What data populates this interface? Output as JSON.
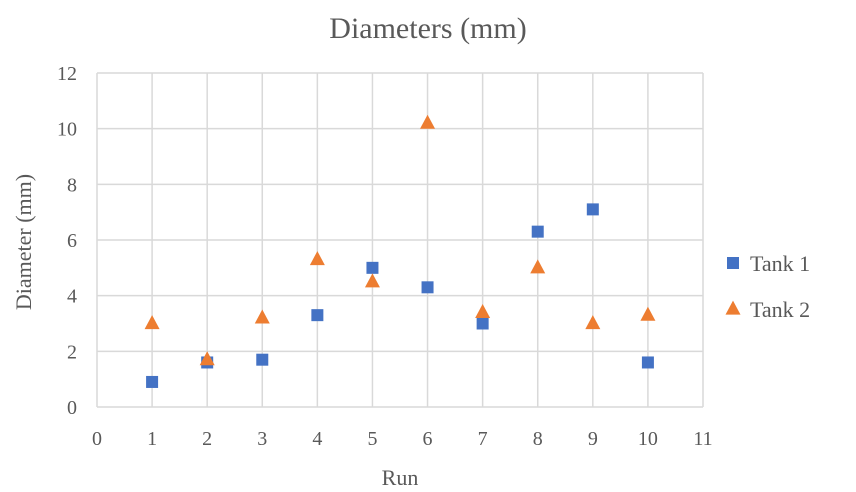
{
  "chart_data": {
    "type": "scatter",
    "title": "Diameters (mm)",
    "xlabel": "Run",
    "ylabel": "Diameter (mm)",
    "xlim": [
      0,
      11
    ],
    "ylim": [
      0,
      12
    ],
    "xticks": [
      0,
      1,
      2,
      3,
      4,
      5,
      6,
      7,
      8,
      9,
      10,
      11
    ],
    "yticks": [
      0,
      2,
      4,
      6,
      8,
      10,
      12
    ],
    "grid": true,
    "legend_position": "right",
    "series": [
      {
        "name": "Tank 1",
        "marker": "square",
        "color": "#4472c4",
        "x": [
          1,
          2,
          3,
          4,
          5,
          6,
          7,
          8,
          9,
          10
        ],
        "y": [
          0.9,
          1.6,
          1.7,
          3.3,
          5.0,
          4.3,
          3.0,
          6.3,
          7.1,
          1.6
        ]
      },
      {
        "name": "Tank 2",
        "marker": "triangle",
        "color": "#ed7d31",
        "x": [
          1,
          2,
          3,
          4,
          5,
          6,
          7,
          8,
          9,
          10
        ],
        "y": [
          3.0,
          1.7,
          3.2,
          5.3,
          4.5,
          10.2,
          3.4,
          5.0,
          3.0,
          3.3
        ]
      }
    ]
  }
}
